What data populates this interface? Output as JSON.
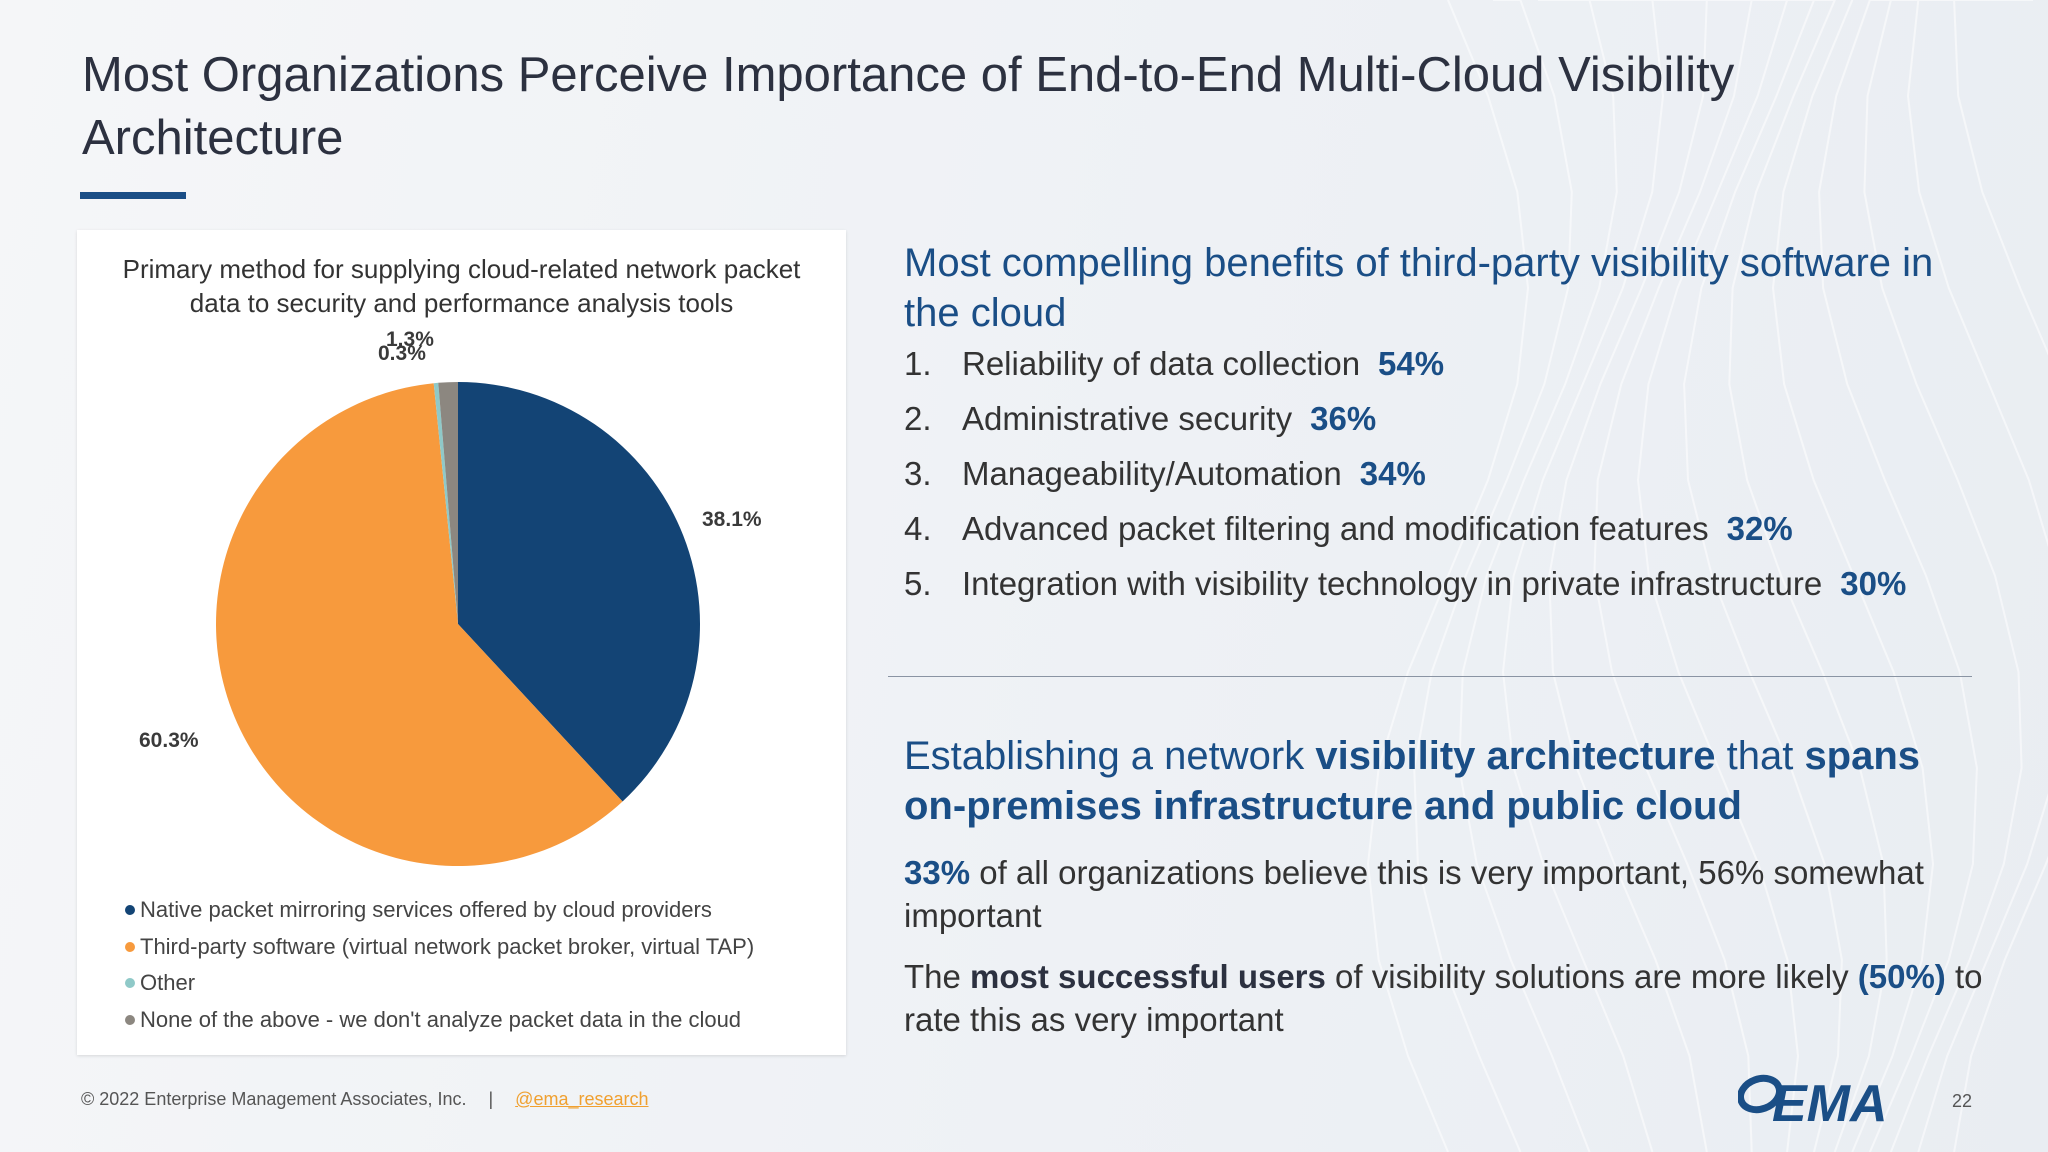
{
  "slide": {
    "title": "Most Organizations Perceive Importance of End-to-End Multi-Cloud Visibility Architecture",
    "page_number": "22"
  },
  "colors": {
    "brand_blue": "#1a4e86",
    "orange": "#f79a3d",
    "teal": "#8fc9c8",
    "gray": "#8c8780"
  },
  "chart_data": {
    "type": "pie",
    "title": "Primary method for supplying cloud-related network packet data to security and performance analysis tools",
    "slices": [
      {
        "name": "Native packet mirroring services offered by cloud providers",
        "value": 38.1,
        "label": "38.1%",
        "color": "#134475"
      },
      {
        "name": "Third-party software (virtual network packet broker, virtual TAP)",
        "value": 60.3,
        "label": "60.3%",
        "color": "#f79a3d"
      },
      {
        "name": "Other",
        "value": 0.3,
        "label": "0.3%",
        "color": "#8fc9c8"
      },
      {
        "name": "None of the above - we don't analyze packet data in the cloud",
        "value": 1.3,
        "label": "1.3%",
        "color": "#8c8780"
      }
    ],
    "legend_position": "bottom"
  },
  "benefits_section": {
    "heading": "Most compelling benefits of third-party visibility software in the cloud",
    "items": [
      {
        "num": "1.",
        "text": "Reliability of data collection",
        "pct": "54%"
      },
      {
        "num": "2.",
        "text": "Administrative security",
        "pct": "36%"
      },
      {
        "num": "3.",
        "text": "Manageability/Automation",
        "pct": "34%"
      },
      {
        "num": "4.",
        "text": "Advanced packet filtering and modification features",
        "pct": "32%"
      },
      {
        "num": "5.",
        "text": "Integration with visibility technology in private infrastructure",
        "pct": "30%"
      }
    ]
  },
  "architecture_section": {
    "heading_p1": "Establishing a network ",
    "heading_b1": "visibility architecture",
    "heading_p2": " that ",
    "heading_b2": "spans on-premises infrastructure and public cloud",
    "para1_pct": "33%",
    "para1_text": " of all organizations believe this is very important, 56% somewhat important",
    "para2_p1": "The ",
    "para2_b1": "most successful users",
    "para2_p2": " of visibility solutions are more likely ",
    "para2_b2": "(50%)",
    "para2_p3": " to rate this as very important"
  },
  "footer": {
    "copyright": "© 2022 Enterprise Management Associates, Inc.",
    "separator": "|",
    "handle": "@ema_research",
    "logo_text": "EMA"
  }
}
